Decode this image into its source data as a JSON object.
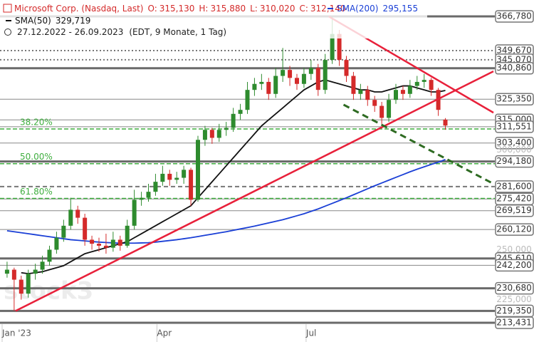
{
  "chart_data": {
    "type": "candlestick",
    "header": {
      "name": "Microsoft Corp. (Nasdaq, Last)",
      "ohlc": [
        {
          "label": "O:",
          "value": "315,130"
        },
        {
          "label": "H:",
          "value": "315,880"
        },
        {
          "label": "L:",
          "value": "310,020"
        },
        {
          "label": "C:",
          "value": "312,140"
        }
      ],
      "range": "27.12.2022 - 26.09.2023",
      "info": "(EDT, 9 Monate, 1 Tag)"
    },
    "watermark": "stock3",
    "up_color": "#2e8b2e",
    "down_color": "#d42a2a",
    "xlim": [
      -1,
      69
    ],
    "xticks": [
      {
        "value": -0.7,
        "label": "Jan '23"
      },
      {
        "value": 21.2,
        "label": "Apr"
      },
      {
        "value": 42.3,
        "label": "Jul"
      }
    ],
    "ylim": [
      203.8,
      375.0
    ],
    "candles": [
      [
        238,
        244,
        236,
        240
      ],
      [
        240,
        241,
        219.35,
        235
      ],
      [
        235,
        237,
        225,
        228
      ],
      [
        228,
        240,
        226,
        238
      ],
      [
        238,
        243,
        235,
        240
      ],
      [
        240,
        247,
        238,
        244
      ],
      [
        244,
        252,
        242,
        250
      ],
      [
        250,
        259,
        248,
        256
      ],
      [
        256,
        265,
        254,
        262
      ],
      [
        262,
        276,
        260,
        270
      ],
      [
        270,
        272,
        263,
        266
      ],
      [
        266,
        268,
        252,
        255
      ],
      [
        255,
        257,
        250,
        253
      ],
      [
        253,
        256,
        249,
        252
      ],
      [
        252,
        258,
        248,
        251
      ],
      [
        251,
        259,
        249,
        255
      ],
      [
        255,
        257,
        249.5,
        252
      ],
      [
        252,
        265,
        251,
        262
      ],
      [
        262,
        280,
        260,
        275
      ],
      [
        275,
        279,
        272,
        276
      ],
      [
        276,
        283,
        274,
        279
      ],
      [
        279,
        288,
        277,
        284
      ],
      [
        284,
        292,
        282,
        288
      ],
      [
        288,
        290,
        282,
        285
      ],
      [
        285,
        289,
        283,
        286
      ],
      [
        286,
        292,
        283,
        290
      ],
      [
        290,
        291,
        272,
        275
      ],
      [
        275,
        307,
        274,
        305
      ],
      [
        305,
        312,
        302,
        310
      ],
      [
        310,
        311,
        303,
        306
      ],
      [
        306,
        313,
        304,
        310
      ],
      [
        310,
        314,
        307,
        311
      ],
      [
        311,
        321,
        309,
        318
      ],
      [
        318,
        323,
        315,
        320
      ],
      [
        320,
        334,
        318,
        330
      ],
      [
        330,
        336,
        327,
        333
      ],
      [
        333,
        338,
        330,
        334
      ],
      [
        334,
        336,
        325,
        328
      ],
      [
        328,
        341,
        326,
        337
      ],
      [
        337,
        351,
        334,
        340
      ],
      [
        340,
        342,
        332,
        336
      ],
      [
        336,
        338,
        330,
        333
      ],
      [
        333,
        341,
        331,
        338
      ],
      [
        338,
        345,
        335,
        341
      ],
      [
        341,
        343,
        327,
        330
      ],
      [
        330,
        348,
        328,
        345
      ],
      [
        345,
        366.78,
        343,
        358
      ],
      [
        358,
        360,
        342,
        345
      ],
      [
        345,
        347,
        334,
        337
      ],
      [
        337,
        339,
        325,
        328
      ],
      [
        328,
        333,
        325,
        330
      ],
      [
        330,
        332,
        322,
        325
      ],
      [
        325,
        327,
        319,
        322
      ],
      [
        322,
        324,
        313,
        316
      ],
      [
        316,
        328,
        314,
        325
      ],
      [
        325,
        333,
        323,
        330
      ],
      [
        330,
        332,
        325,
        328
      ],
      [
        328,
        335,
        326,
        332
      ],
      [
        332,
        337,
        330,
        334
      ],
      [
        334,
        338,
        331,
        335
      ],
      [
        335,
        336,
        327,
        330
      ],
      [
        330,
        331,
        317,
        320
      ],
      [
        315.13,
        315.88,
        310.02,
        312.14
      ]
    ],
    "series": [
      {
        "name": "SMA(200)",
        "value_label": "295,155",
        "color": "#1a3fd6",
        "values": [
          259.5,
          259,
          258.5,
          258,
          257.5,
          257,
          256.5,
          256,
          255.5,
          255,
          254.7,
          254.4,
          254.1,
          253.8,
          253.6,
          253.4,
          253.3,
          253.3,
          253.3,
          253.4,
          253.5,
          253.8,
          254.2,
          254.6,
          255,
          255.5,
          256,
          256.6,
          257.2,
          257.8,
          258.4,
          259,
          259.7,
          260.4,
          261.1,
          261.8,
          262.6,
          263.4,
          264.2,
          265,
          266,
          267,
          268,
          269.2,
          270.4,
          271.8,
          273.2,
          274.6,
          276,
          277.5,
          279,
          280.5,
          282,
          283.4,
          284.8,
          286.2,
          287.6,
          289,
          290.3,
          291.5,
          292.7,
          293.8,
          295.155
        ]
      },
      {
        "name": "SMA(50)",
        "value_label": "329,719",
        "color": "#111111",
        "values": [
          null,
          null,
          238.5,
          238,
          238.5,
          239,
          240,
          241,
          242,
          244,
          246,
          248,
          249,
          250,
          251,
          252,
          253,
          254,
          256,
          258,
          260,
          262,
          264,
          266,
          268,
          270,
          272,
          276,
          280,
          284,
          288,
          292,
          296,
          300,
          304,
          308,
          312,
          315,
          318,
          321,
          324,
          327,
          330,
          332,
          334,
          335,
          334,
          333,
          332,
          331,
          330,
          330,
          329,
          329,
          330,
          331,
          332,
          332,
          331,
          330,
          329,
          329,
          329.719
        ]
      }
    ],
    "levels": [
      {
        "value": 366.78,
        "label": "366,780",
        "style": "thick"
      },
      {
        "value": 349.67,
        "label": "349,670",
        "style": "dotted"
      },
      {
        "value": 345.07,
        "label": "345,070",
        "style": "dotted"
      },
      {
        "value": 340.86,
        "label": "340,860",
        "style": "thick"
      },
      {
        "value": 325.35,
        "label": "325,350",
        "style": "thin"
      },
      {
        "value": 315.0,
        "label": "315,000",
        "style": "thin"
      },
      {
        "value": 311.551,
        "label": "311,551",
        "style": "thin"
      },
      {
        "value": 303.4,
        "label": "303,400",
        "style": "thin"
      },
      {
        "value": 300.0,
        "label": "300,000",
        "style": "axis"
      },
      {
        "value": 294.18,
        "label": "294,180",
        "style": "thick"
      },
      {
        "value": 281.6,
        "label": "281,600",
        "style": "dashed"
      },
      {
        "value": 275.42,
        "label": "275,420",
        "style": "thin"
      },
      {
        "value": 269.519,
        "label": "269,519",
        "style": "thin"
      },
      {
        "value": 260.12,
        "label": "260,120",
        "style": "thin"
      },
      {
        "value": 250.0,
        "label": "250,000",
        "style": "axis"
      },
      {
        "value": 245.61,
        "label": "245,610",
        "style": "thick"
      },
      {
        "value": 242.2,
        "label": "242,200",
        "style": "thin"
      },
      {
        "value": 230.68,
        "label": "230,680",
        "style": "thick"
      },
      {
        "value": 225.0,
        "label": "225,000",
        "style": "axis"
      },
      {
        "value": 219.35,
        "label": "219,350",
        "style": "thick"
      },
      {
        "value": 213.431,
        "label": "213,431",
        "style": "thick"
      }
    ],
    "fib_levels": [
      {
        "value": 310.46,
        "label": "38.20%"
      },
      {
        "value": 293.07,
        "label": "50.00%"
      },
      {
        "value": 275.67,
        "label": "61.80%"
      }
    ],
    "trendlines": [
      {
        "color": "#e8203a",
        "dash": false,
        "x": [
          1.2,
          68.8
        ],
        "y": [
          219.35,
          339.3
        ]
      },
      {
        "color": "#e8203a",
        "dash": false,
        "x": [
          45.5,
          68.8
        ],
        "y": [
          366.78,
          318.6
        ]
      },
      {
        "color": "#2e6b22",
        "dash": true,
        "x": [
          47.6,
          68.8
        ],
        "y": [
          322.6,
          283.0
        ]
      }
    ]
  }
}
